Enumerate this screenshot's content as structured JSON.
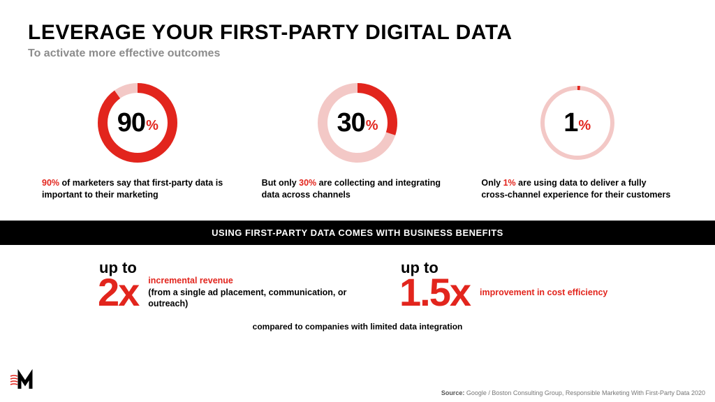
{
  "header": {
    "title": "LEVERAGE YOUR FIRST-PARTY DIGITAL DATA",
    "subtitle": "To activate more effective outcomes"
  },
  "colors": {
    "accent": "#e2251d",
    "track": "#f3c8c6",
    "bg": "#ffffff",
    "text": "#000000",
    "bar_bg": "#000000",
    "bar_text": "#ffffff"
  },
  "donuts": [
    {
      "value": 90,
      "number": "90",
      "pct": "%",
      "stroke_width": 14,
      "caption_pre": "",
      "caption_hl": "90%",
      "caption_post": " of marketers say that first-party data is important to their marketing"
    },
    {
      "value": 30,
      "number": "30",
      "pct": "%",
      "stroke_width": 14,
      "caption_pre": "But only ",
      "caption_hl": "30%",
      "caption_post": " are collecting and integrating data across channels"
    },
    {
      "value": 1,
      "number": "1",
      "pct": "%",
      "stroke_width": 6,
      "caption_pre": "Only ",
      "caption_hl": "1%",
      "caption_post": " are using data to deliver a fully cross-channel experience for their customers"
    }
  ],
  "bar": {
    "text": "USING FIRST-PARTY DATA COMES WITH BUSINESS BENEFITS"
  },
  "benefits": [
    {
      "upto": "up to",
      "big": "2x",
      "desc_main": "incremental revenue",
      "desc_sub": "(from a single ad placement, communication, or outreach)"
    },
    {
      "upto": "up to",
      "big": "1.5x",
      "desc_main": "improvement in cost efficiency",
      "desc_sub": ""
    }
  ],
  "compare": "compared to companies with limited data integration",
  "source": {
    "label": "Source:",
    "text": " Google / Boston Consulting Group, Responsible Marketing With First-Party Data 2020"
  }
}
